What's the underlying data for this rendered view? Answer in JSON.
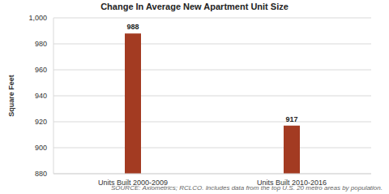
{
  "chart_data": {
    "type": "bar",
    "title": "Change In Average New Apartment Unit Size",
    "ylabel": "Square Feet",
    "annotation": "SOURCE: Axiometrics; RCLCO. Includes data from the top U.S. 20 metro areas by population.",
    "categories": [
      "Units Built 2000-2009",
      "Units Built 2010-2016"
    ],
    "values": [
      988,
      917
    ],
    "color": "#a33b22",
    "ylim": [
      880,
      1000
    ],
    "yticks": [
      880,
      900,
      920,
      940,
      960,
      980,
      {
        "value": 1000,
        "label": "1,000"
      }
    ],
    "grid": true,
    "data_labels": true
  }
}
